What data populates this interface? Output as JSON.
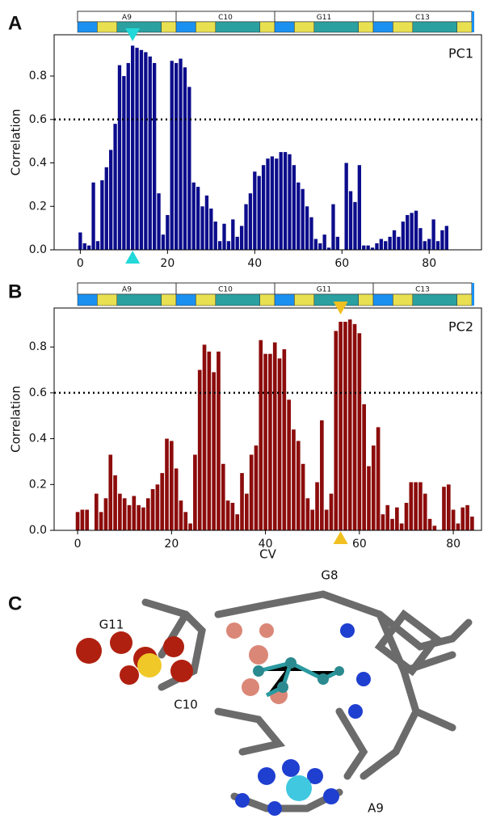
{
  "chart_data": [
    {
      "type": "bar",
      "panel_label": "A",
      "ylabel": "Correlation",
      "x": [
        0,
        1,
        2,
        3,
        4,
        5,
        6,
        7,
        8,
        9,
        10,
        11,
        12,
        13,
        14,
        15,
        16,
        17,
        18,
        19,
        20,
        21,
        22,
        23,
        24,
        25,
        26,
        27,
        28,
        29,
        30,
        31,
        32,
        33,
        34,
        35,
        36,
        37,
        38,
        39,
        40,
        41,
        42,
        43,
        44,
        45,
        46,
        47,
        48,
        49,
        50,
        51,
        52,
        53,
        54,
        55,
        56,
        57,
        58,
        59,
        60,
        61,
        62,
        63,
        64,
        65,
        66,
        67,
        68,
        69,
        70,
        71,
        72,
        73,
        74,
        75,
        76,
        77,
        78,
        79,
        80,
        81,
        82,
        83,
        84
      ],
      "series": [
        {
          "name": "PC1",
          "color": "#0c0c8c",
          "values": [
            0.08,
            0.03,
            0.02,
            0.31,
            0.04,
            0.32,
            0.38,
            0.46,
            0.58,
            0.85,
            0.8,
            0.86,
            0.94,
            0.93,
            0.92,
            0.91,
            0.89,
            0.86,
            0.26,
            0.07,
            0.16,
            0.87,
            0.86,
            0.88,
            0.84,
            0.75,
            0.31,
            0.29,
            0.2,
            0.25,
            0.19,
            0.13,
            0.04,
            0.12,
            0.04,
            0.14,
            0.06,
            0.11,
            0.21,
            0.26,
            0.36,
            0.34,
            0.39,
            0.42,
            0.43,
            0.42,
            0.45,
            0.45,
            0.44,
            0.39,
            0.31,
            0.28,
            0.2,
            0.15,
            0.05,
            0.03,
            0.07,
            0.01,
            0.21,
            0.06,
            0.0,
            0.4,
            0.27,
            0.22,
            0.39,
            0.02,
            0.02,
            0.01,
            0.03,
            0.05,
            0.04,
            0.06,
            0.09,
            0.06,
            0.13,
            0.16,
            0.17,
            0.18,
            0.1,
            0.04,
            0.05,
            0.14,
            0.04,
            0.09,
            0.11
          ]
        }
      ],
      "xlim": [
        -6,
        92
      ],
      "xticks": [
        0,
        20,
        40,
        60,
        80
      ],
      "ylim": [
        0,
        0.99
      ],
      "yticks": [
        {
          "value": 0,
          "label": "0.0"
        },
        0.2,
        0.4,
        0.6,
        0.8
      ],
      "threshold": 0.6,
      "marker_x": 12,
      "marker_color": "#22d8d8",
      "segments": [
        "A9",
        "C10",
        "G11",
        "C13"
      ]
    },
    {
      "type": "bar",
      "panel_label": "B",
      "ylabel": "Correlation",
      "xlabel": "CV",
      "x": [
        0,
        1,
        2,
        3,
        4,
        5,
        6,
        7,
        8,
        9,
        10,
        11,
        12,
        13,
        14,
        15,
        16,
        17,
        18,
        19,
        20,
        21,
        22,
        23,
        24,
        25,
        26,
        27,
        28,
        29,
        30,
        31,
        32,
        33,
        34,
        35,
        36,
        37,
        38,
        39,
        40,
        41,
        42,
        43,
        44,
        45,
        46,
        47,
        48,
        49,
        50,
        51,
        52,
        53,
        54,
        55,
        56,
        57,
        58,
        59,
        60,
        61,
        62,
        63,
        64,
        65,
        66,
        67,
        68,
        69,
        70,
        71,
        72,
        73,
        74,
        75,
        76,
        77,
        78,
        79,
        80,
        81,
        82,
        83,
        84
      ],
      "series": [
        {
          "name": "PC2",
          "color": "#8c0c0c",
          "values": [
            0.08,
            0.09,
            0.09,
            0.0,
            0.16,
            0.08,
            0.14,
            0.33,
            0.24,
            0.16,
            0.14,
            0.11,
            0.15,
            0.11,
            0.1,
            0.14,
            0.18,
            0.2,
            0.25,
            0.4,
            0.39,
            0.27,
            0.13,
            0.08,
            0.03,
            0.33,
            0.7,
            0.81,
            0.78,
            0.69,
            0.78,
            0.29,
            0.13,
            0.12,
            0.07,
            0.25,
            0.16,
            0.33,
            0.37,
            0.83,
            0.77,
            0.77,
            0.82,
            0.75,
            0.79,
            0.57,
            0.44,
            0.39,
            0.29,
            0.14,
            0.09,
            0.21,
            0.48,
            0.09,
            0.16,
            0.87,
            0.91,
            0.91,
            0.92,
            0.9,
            0.86,
            0.55,
            0.28,
            0.37,
            0.45,
            0.07,
            0.11,
            0.05,
            0.1,
            0.03,
            0.12,
            0.21,
            0.21,
            0.21,
            0.16,
            0.05,
            0.02,
            0.0,
            0.19,
            0.2,
            0.09,
            0.03,
            0.1,
            0.11,
            0.06
          ]
        }
      ],
      "xlim": [
        -5,
        86
      ],
      "xticks": [
        0,
        20,
        40,
        60,
        80
      ],
      "ylim": [
        0,
        0.97
      ],
      "yticks": [
        {
          "value": 0,
          "label": "0.0"
        },
        0.2,
        0.4,
        0.6,
        0.8
      ],
      "threshold": 0.6,
      "marker_x": 56,
      "marker_color": "#f0c020",
      "segments": [
        "A9",
        "C10",
        "G11",
        "C13"
      ]
    }
  ],
  "figure_c": {
    "panel_label": "C",
    "labels": [
      "G8",
      "G11",
      "C10",
      "A9"
    ]
  }
}
